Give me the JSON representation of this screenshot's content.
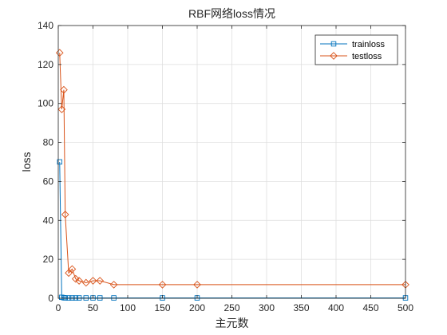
{
  "chart_data": {
    "type": "line",
    "title": "RBF网络loss情况",
    "xlabel": "主元数",
    "ylabel": "loss",
    "xlim": [
      0,
      500
    ],
    "ylim": [
      0,
      140
    ],
    "xticks": [
      0,
      50,
      100,
      150,
      200,
      250,
      300,
      350,
      400,
      450,
      500
    ],
    "yticks": [
      0,
      20,
      40,
      60,
      80,
      100,
      120,
      140
    ],
    "grid": true,
    "legend_position": "top-right",
    "series": [
      {
        "name": "trainloss",
        "color": "#0072BD",
        "marker": "square",
        "x": [
          2,
          5,
          8,
          10,
          15,
          20,
          25,
          30,
          40,
          50,
          60,
          80,
          150,
          200,
          500
        ],
        "y": [
          70,
          0.5,
          0.3,
          0.2,
          0.2,
          0.2,
          0.2,
          0.2,
          0.2,
          0.2,
          0.2,
          0.2,
          0.2,
          0.2,
          0.2
        ]
      },
      {
        "name": "testloss",
        "color": "#D95319",
        "marker": "diamond",
        "x": [
          2,
          5,
          8,
          10,
          15,
          20,
          25,
          30,
          40,
          50,
          60,
          80,
          150,
          200,
          500
        ],
        "y": [
          126,
          97,
          107,
          43,
          13,
          15,
          10,
          9,
          8,
          9,
          9,
          7,
          7,
          7,
          7
        ]
      }
    ]
  }
}
